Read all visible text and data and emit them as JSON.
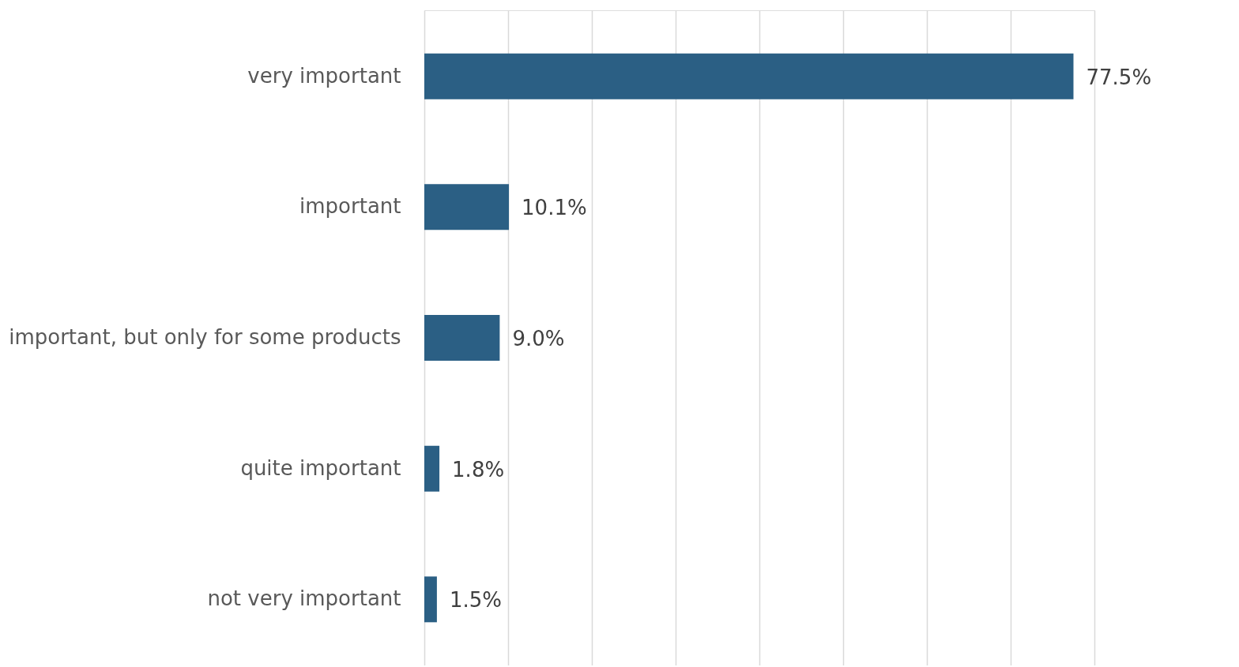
{
  "chart_data": {
    "type": "bar",
    "orientation": "horizontal",
    "categories": [
      "very important",
      "important",
      "important, but only for some products",
      "quite important",
      "not very important"
    ],
    "values": [
      77.5,
      10.1,
      9.0,
      1.8,
      1.5
    ],
    "value_labels": [
      "77.5%",
      "10.1%",
      "9.0%",
      "1.8%",
      "1.5%"
    ],
    "color": "#2b5f84",
    "xlim": [
      0,
      80
    ],
    "xticks": [
      {
        "value": 0,
        "label": null
      },
      {
        "value": 10,
        "label": null
      },
      {
        "value": 20,
        "label": null
      },
      {
        "value": 30,
        "label": null
      },
      {
        "value": 40,
        "label": null
      },
      {
        "value": 50,
        "label": null
      },
      {
        "value": 60,
        "label": null
      },
      {
        "value": 70,
        "label": null
      },
      {
        "value": 80,
        "label": null
      }
    ],
    "grid": "x",
    "tick_labels": "y"
  }
}
